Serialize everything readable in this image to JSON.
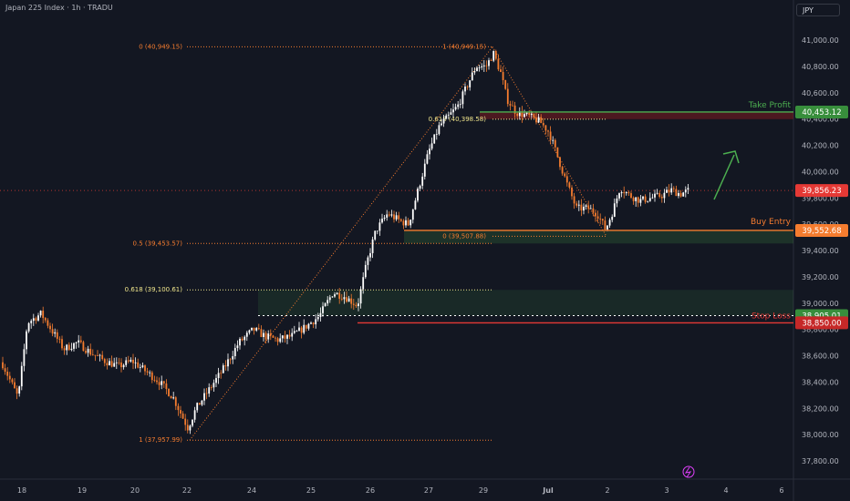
{
  "header": {
    "symbol": "Japan 225 Index · 1h · TRADU",
    "currency": "JPY"
  },
  "chart_data": {
    "type": "candlestick",
    "ylim": [
      37700,
      41150
    ],
    "y_ticks": [
      "41,000.00",
      "40,800.00",
      "40,600.00",
      "40,400.00",
      "40,200.00",
      "40,000.00",
      "39,800.00",
      "39,600.00",
      "39,400.00",
      "39,200.00",
      "39,000.00",
      "38,800.00",
      "38,600.00",
      "38,400.00",
      "38,200.00",
      "38,000.00",
      "37,800.00"
    ],
    "x_ticks": [
      "18",
      "19",
      "20",
      "22",
      "24",
      "25",
      "26",
      "27",
      "29",
      "Jul",
      "2",
      "3",
      "4",
      "6"
    ],
    "price_labels": {
      "take_profit": "40,453.12",
      "current": "39,856.23",
      "buy_entry": "39,552.68",
      "stop_1": "38,905.01",
      "stop_2": "38,850.00"
    },
    "annotations": {
      "take_profit": "Take Profit",
      "buy_entry": "Buy Entry",
      "stop_loss": "Stop Loss"
    },
    "fib_1": {
      "level_0": "0 (40,949.15)",
      "level_05": "0.5 (39,453.57)",
      "level_0618": "0.618 (39,100.61)",
      "level_1": "1 (37,957.99)"
    },
    "fib_2": {
      "level_1": "1 (40,949.15)",
      "level_0618": "0.618 (40,398.58)",
      "level_0": "0 (39,507.88)"
    },
    "levels": {
      "take_profit": 40453.12,
      "current": 39856.23,
      "buy_entry": 39552.68,
      "stop_1": 38905.01,
      "stop_2": 38850,
      "fib_top": 40949.15,
      "fib_mid": 40398.58,
      "fib_half": 39453.57,
      "fib_618": 39100.61,
      "fib_low": 37957.99,
      "fib2_low": 39507.88
    },
    "colors": {
      "up": "#ffffff",
      "down": "#f57c2f",
      "take_profit": "#4caf50",
      "buy_entry": "#f57c2f",
      "stop": "#e53935",
      "fib_orange": "#f57c2f",
      "fib_yellow": "#f0e68c"
    }
  }
}
